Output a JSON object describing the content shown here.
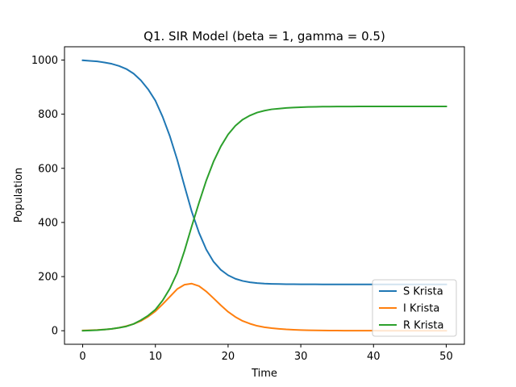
{
  "chart_data": {
    "type": "line",
    "title": "Q1. SIR Model (beta = 1, gamma = 0.5)",
    "xlabel": "Time",
    "ylabel": "Population",
    "xlim": [
      -2.5,
      52.5
    ],
    "ylim": [
      -50,
      1049
    ],
    "xticks": [
      0,
      10,
      20,
      30,
      40,
      50
    ],
    "yticks": [
      0,
      200,
      400,
      600,
      800,
      1000
    ],
    "grid": false,
    "legend_position": "lower-right",
    "x": [
      0,
      1,
      2,
      3,
      4,
      5,
      6,
      7,
      8,
      9,
      10,
      11,
      12,
      13,
      14,
      15,
      16,
      17,
      18,
      19,
      20,
      21,
      22,
      23,
      24,
      25,
      26,
      27,
      28,
      29,
      30,
      31,
      32,
      33,
      34,
      35,
      36,
      37,
      38,
      39,
      40,
      41,
      42,
      43,
      44,
      45,
      46,
      47,
      48,
      49,
      50
    ],
    "series": [
      {
        "name": "S Krista",
        "color": "#1f77b4",
        "values": [
          999,
          997,
          995,
          991,
          986,
          978,
          967,
          950,
          925,
          892,
          850,
          790,
          718,
          632,
          535,
          440,
          362,
          300,
          255,
          225,
          205,
          192,
          184,
          179,
          176,
          174,
          173,
          172.5,
          172,
          171.8,
          171.6,
          171.5,
          171.4,
          171.3,
          171.3,
          171.3,
          171.3,
          171.3,
          171.3,
          171.3,
          171.3,
          171.3,
          171.3,
          171.3,
          171.3,
          171.3,
          171.3,
          171.3,
          171.3,
          171.3,
          171.3
        ]
      },
      {
        "name": "I Krista",
        "color": "#ff7f0e",
        "values": [
          1,
          1.7,
          2.8,
          4.5,
          7,
          11,
          17,
          25,
          36,
          52,
          72,
          98,
          126,
          154,
          170,
          174,
          165,
          145,
          120,
          94,
          70,
          51,
          36,
          26,
          18,
          13,
          9.5,
          7,
          5,
          3.6,
          2.6,
          1.9,
          1.4,
          1,
          0.7,
          0.5,
          0.4,
          0.3,
          0.2,
          0.15,
          0.1,
          0.08,
          0.06,
          0.04,
          0.03,
          0.02,
          0.02,
          0.01,
          0.01,
          0.01,
          0.01
        ]
      },
      {
        "name": "R Krista",
        "color": "#2ca02c",
        "values": [
          0,
          1,
          2.2,
          4.5,
          7,
          11,
          16,
          25,
          39,
          56,
          78,
          112,
          156,
          214,
          295,
          386,
          473,
          555,
          625,
          681,
          725,
          757,
          780,
          795,
          806,
          813,
          818,
          820.5,
          823,
          824.6,
          825.8,
          826.6,
          827.2,
          827.7,
          828,
          828.2,
          828.3,
          828.4,
          828.5,
          828.55,
          828.6,
          828.62,
          828.64,
          828.66,
          828.67,
          828.68,
          828.68,
          828.69,
          828.69,
          828.69,
          828.69
        ]
      }
    ]
  }
}
